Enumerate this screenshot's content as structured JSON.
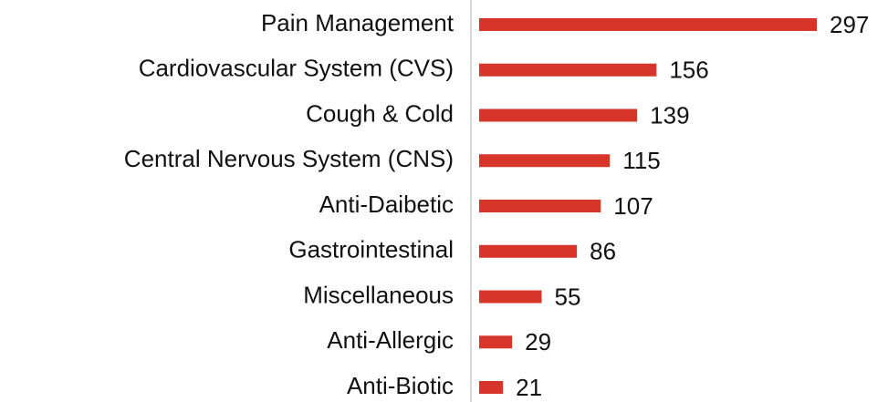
{
  "chart_data": {
    "type": "bar",
    "orientation": "horizontal",
    "categories": [
      "Pain Management",
      "Cardiovascular System (CVS)",
      "Cough & Cold",
      "Central Nervous System (CNS)",
      "Anti-Daibetic",
      "Gastrointestinal",
      "Miscellaneous",
      "Anti-Allergic",
      "Anti-Biotic"
    ],
    "values": [
      297,
      156,
      139,
      115,
      107,
      86,
      55,
      29,
      21
    ],
    "color": "#d8352a"
  }
}
